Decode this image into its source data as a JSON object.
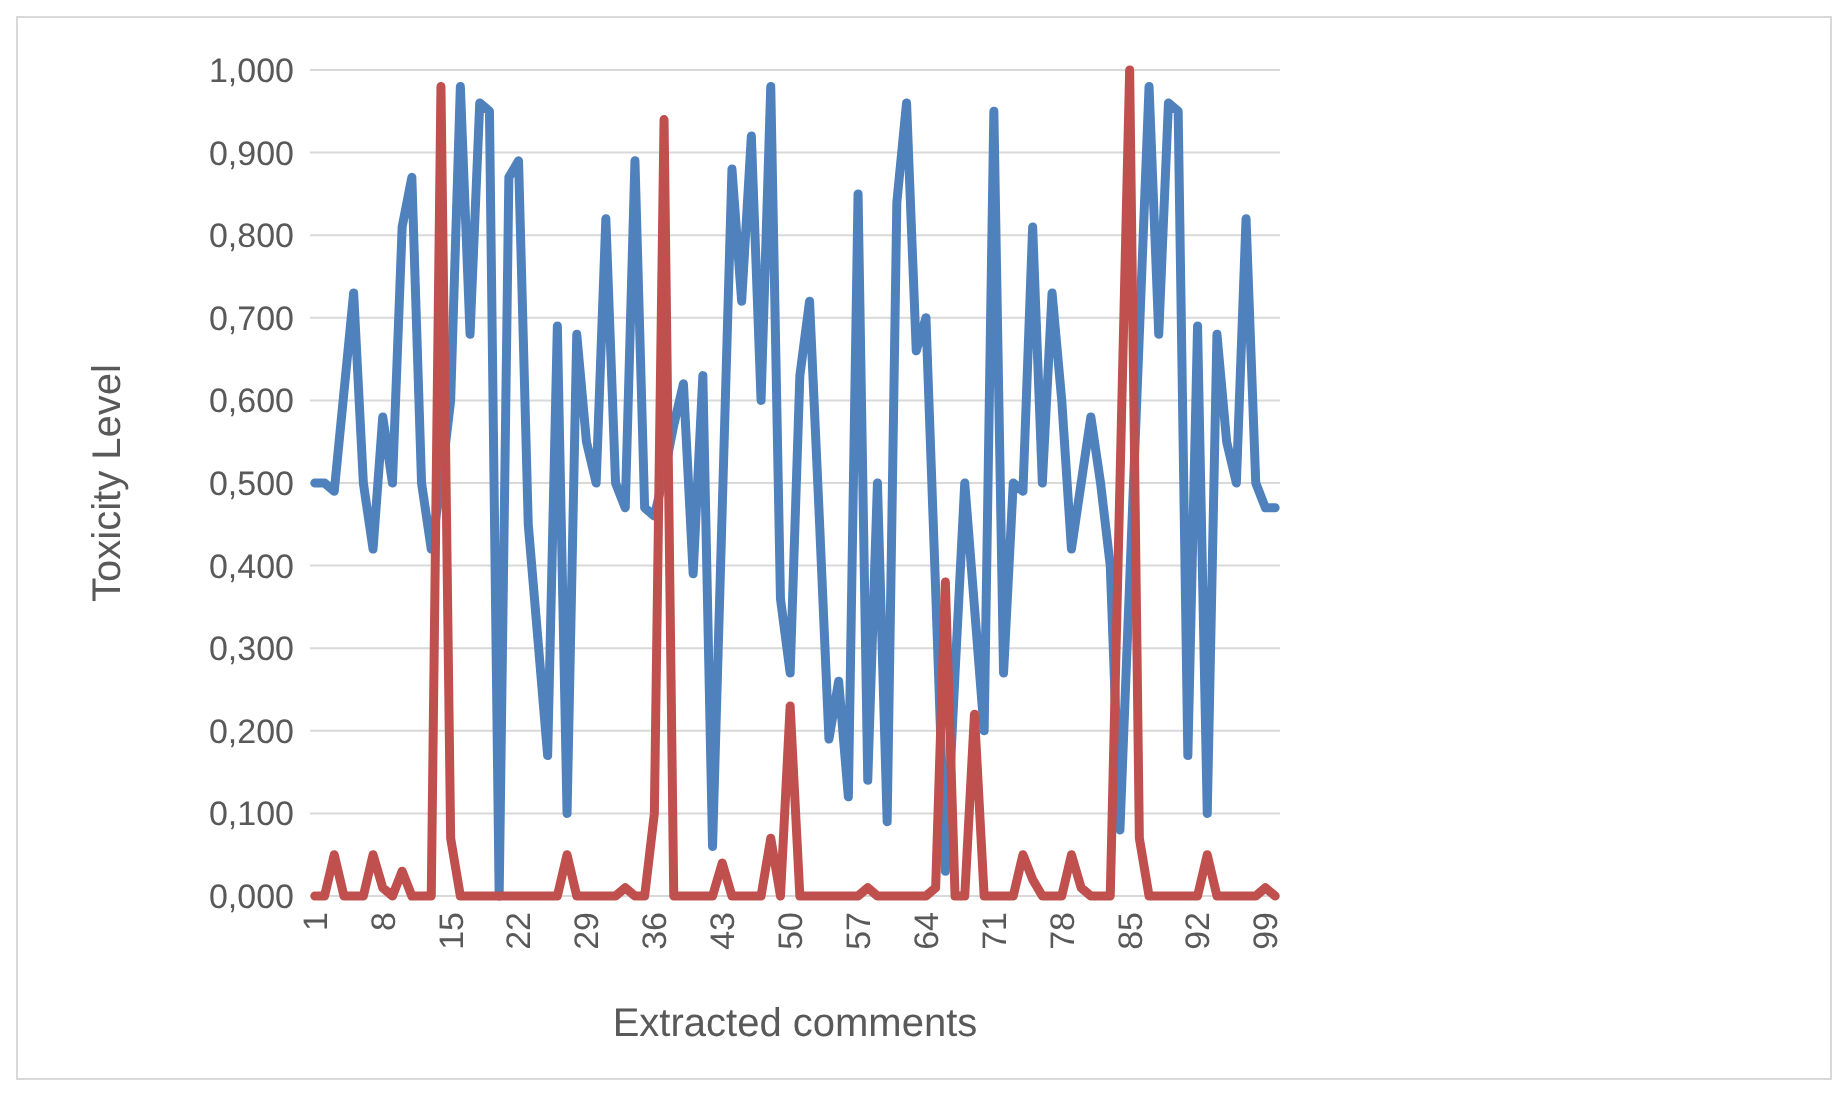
{
  "chart_data": {
    "type": "line",
    "xlabel": "Extracted comments",
    "ylabel": "Toxicity Level",
    "categories": [
      "1",
      null,
      null,
      null,
      null,
      null,
      null,
      "8",
      null,
      null,
      null,
      null,
      null,
      null,
      "15",
      null,
      null,
      null,
      null,
      null,
      null,
      "22",
      null,
      null,
      null,
      null,
      null,
      null,
      "29",
      null,
      null,
      null,
      null,
      null,
      null,
      "36",
      null,
      null,
      null,
      null,
      null,
      null,
      "43",
      null,
      null,
      null,
      null,
      null,
      null,
      "50",
      null,
      null,
      null,
      null,
      null,
      null,
      "57",
      null,
      null,
      null,
      null,
      null,
      null,
      "64",
      null,
      null,
      null,
      null,
      null,
      null,
      "71",
      null,
      null,
      null,
      null,
      null,
      null,
      "78",
      null,
      null,
      null,
      null,
      null,
      null,
      "85",
      null,
      null,
      null,
      null,
      null,
      null,
      "92",
      null,
      null,
      null,
      null,
      null,
      null,
      "99",
      null
    ],
    "series": [
      {
        "color": "#4f81bd",
        "values": [
          0.5,
          0.5,
          0.49,
          0.61,
          0.73,
          0.5,
          0.42,
          0.58,
          0.5,
          0.81,
          0.87,
          0.5,
          0.42,
          0.5,
          0.6,
          0.98,
          0.68,
          0.96,
          0.95,
          0,
          0.87,
          0.89,
          0.45,
          0.31,
          0.17,
          0.69,
          0.1,
          0.68,
          0.55,
          0.5,
          0.82,
          0.5,
          0.47,
          0.89,
          0.47,
          0.46,
          0.51,
          0.57,
          0.62,
          0.39,
          0.63,
          0.06,
          0.47,
          0.88,
          0.72,
          0.92,
          0.6,
          0.98,
          0.36,
          0.27,
          0.63,
          0.72,
          0.46,
          0.19,
          0.26,
          0.12,
          0.85,
          0.14,
          0.5,
          0.09,
          0.84,
          0.96,
          0.66,
          0.7,
          0.37,
          0.03,
          0.27,
          0.5,
          0.35,
          0.2,
          0.95,
          0.27,
          0.5,
          0.49,
          0.81,
          0.5,
          0.73,
          0.6,
          0.42,
          0.5,
          0.58,
          0.5,
          0.4,
          0.08,
          0.38,
          0.68,
          0.98,
          0.68,
          0.96,
          0.95,
          0.17,
          0.69,
          0.1,
          0.68,
          0.55,
          0.5,
          0.82,
          0.5,
          0.47,
          0.47
        ]
      },
      {
        "color": "#c0504d",
        "values": [
          0,
          0,
          0.05,
          0,
          0,
          0,
          0.05,
          0.01,
          0,
          0.03,
          0,
          0,
          0,
          0.98,
          0.07,
          0,
          0,
          0,
          0,
          0,
          0,
          0,
          0,
          0,
          0,
          0,
          0.05,
          0,
          0,
          0,
          0,
          0,
          0.01,
          0,
          0,
          0.1,
          0.94,
          0,
          0,
          0,
          0,
          0,
          0.04,
          0,
          0,
          0,
          0,
          0.07,
          0,
          0.23,
          0,
          0,
          0,
          0,
          0,
          0,
          0,
          0.01,
          0,
          0,
          0,
          0,
          0,
          0,
          0.01,
          0.38,
          0,
          0,
          0.22,
          0,
          0,
          0,
          0,
          0.05,
          0.02,
          0,
          0,
          0,
          0.05,
          0.01,
          0,
          0,
          0,
          0.5,
          1,
          0.07,
          0,
          0,
          0,
          0,
          0,
          0,
          0.05,
          0,
          0,
          0,
          0,
          0,
          0.01,
          0
        ]
      }
    ],
    "ylim": [
      0,
      1
    ],
    "yticks": [
      {
        "value": 0,
        "label": "0,000"
      },
      {
        "value": 0.1,
        "label": "0,100"
      },
      {
        "value": 0.2,
        "label": "0,200"
      },
      {
        "value": 0.3,
        "label": "0,300"
      },
      {
        "value": 0.4,
        "label": "0,400"
      },
      {
        "value": 0.5,
        "label": "0,500"
      },
      {
        "value": 0.6,
        "label": "0,600"
      },
      {
        "value": 0.7,
        "label": "0,700"
      },
      {
        "value": 0.8,
        "label": "0,800"
      },
      {
        "value": 0.9,
        "label": "0,900"
      },
      {
        "value": 1,
        "label": "1,000"
      }
    ],
    "grid": "y",
    "marker": "none",
    "line_style": "solid"
  }
}
